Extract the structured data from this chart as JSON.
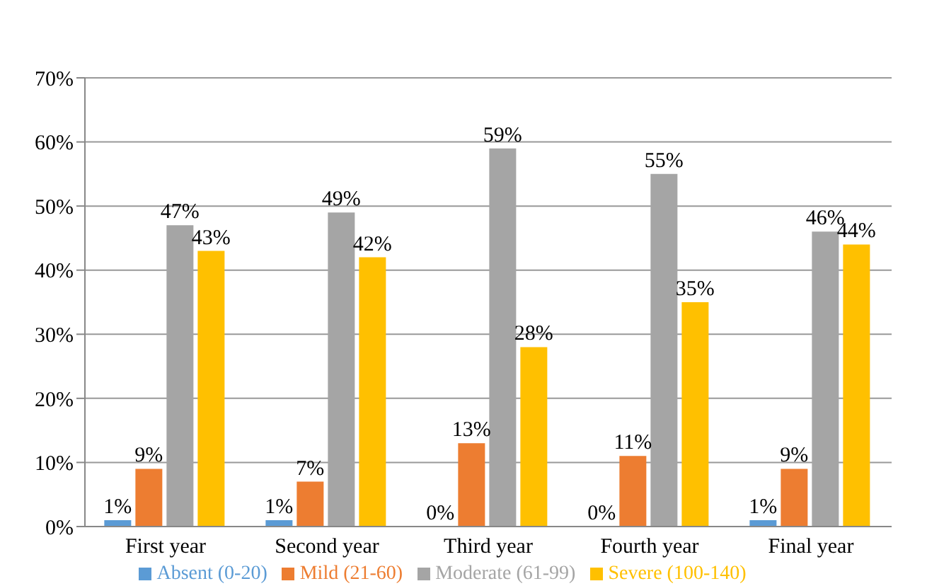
{
  "chart_data": {
    "type": "bar",
    "categories": [
      "First year",
      "Second year",
      "Third year",
      "Fourth year",
      "Final year"
    ],
    "series": [
      {
        "name": "Absent (0-20)",
        "color": "#5b9bd5",
        "values": [
          1,
          1,
          0,
          0,
          1
        ],
        "value_labels": [
          "1%",
          "1%",
          "0%",
          "0%",
          "1%"
        ]
      },
      {
        "name": "Mild (21-60)",
        "color": "#ed7d31",
        "values": [
          9,
          7,
          13,
          11,
          9
        ],
        "value_labels": [
          "9%",
          "7%",
          "13%",
          "11%",
          "9%"
        ]
      },
      {
        "name": "Moderate (61-99)",
        "color": "#a5a5a5",
        "values": [
          47,
          49,
          59,
          55,
          46
        ],
        "value_labels": [
          "47%",
          "49%",
          "59%",
          "55%",
          "46%"
        ]
      },
      {
        "name": "Severe (100-140)",
        "color": "#ffc000",
        "values": [
          43,
          42,
          28,
          35,
          44
        ],
        "value_labels": [
          "43%",
          "42%",
          "28%",
          "35%",
          "44%"
        ]
      }
    ],
    "ylim": [
      0,
      70
    ],
    "yticks": [
      {
        "value": 0,
        "label": "0%"
      },
      {
        "value": 10,
        "label": "10%"
      },
      {
        "value": 20,
        "label": "20%"
      },
      {
        "value": 30,
        "label": "30%"
      },
      {
        "value": 40,
        "label": "40%"
      },
      {
        "value": 50,
        "label": "50%"
      },
      {
        "value": 60,
        "label": "60%"
      },
      {
        "value": 70,
        "label": "70%"
      }
    ],
    "grid": "y",
    "legend": "bottom"
  }
}
